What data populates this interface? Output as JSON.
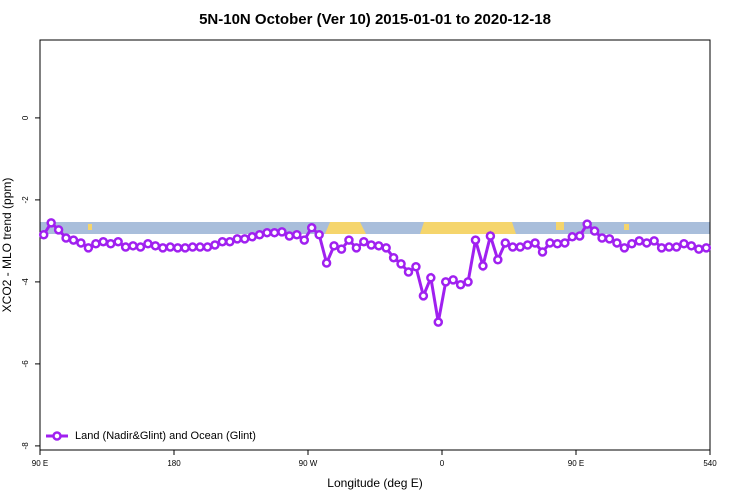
{
  "chart_data": {
    "type": "line",
    "title": "5N-10N October (Ver 10)   2015-01-01 to 2020-12-18",
    "x_label": "Longitude (deg E)",
    "y_label": "XCO2 - MLO trend (ppm)",
    "xlim": [
      90,
      540
    ],
    "ylim": [
      -8.1,
      1.9
    ],
    "xticks": [
      {
        "value": 90,
        "label": "90 E"
      },
      180,
      {
        "value": 270,
        "label": "90 W"
      },
      {
        "value": 360,
        "label": "0"
      },
      {
        "value": 450,
        "label": "90 E"
      },
      540
    ],
    "yticks": [
      0,
      -2,
      -4,
      -6,
      -8
    ],
    "legend": "bottom-left",
    "x": [
      92.5,
      97.5,
      102.5,
      107.5,
      112.5,
      117.5,
      122.5,
      127.5,
      132.5,
      137.5,
      142.5,
      147.5,
      152.5,
      157.5,
      162.5,
      167.5,
      172.5,
      177.5,
      182.5,
      187.5,
      192.5,
      197.5,
      202.5,
      207.5,
      212.5,
      217.5,
      222.5,
      227.5,
      232.5,
      237.5,
      242.5,
      247.5,
      252.5,
      257.5,
      262.5,
      267.5,
      272.5,
      277.5,
      282.5,
      287.5,
      292.5,
      297.5,
      302.5,
      307.5,
      312.5,
      317.5,
      322.5,
      327.5,
      332.5,
      337.5,
      342.5,
      347.5,
      352.5,
      357.5,
      362.5,
      367.5,
      372.5,
      377.5,
      382.5,
      387.5,
      392.5,
      397.5,
      402.5,
      407.5,
      412.5,
      417.5,
      422.5,
      427.5,
      432.5,
      437.5,
      442.5,
      447.5,
      452.5,
      457.5,
      462.5,
      467.5,
      472.5,
      477.5,
      482.5,
      487.5,
      492.5,
      497.5,
      502.5,
      507.5,
      512.5,
      517.5,
      522.5,
      527.5,
      532.5,
      537.5
    ],
    "series": [
      {
        "name": "Land (Nadir&Glint) and Ocean (Glint)",
        "color": "#a020f0",
        "values": [
          -2.85,
          -2.56,
          -2.73,
          -2.93,
          -2.98,
          -3.05,
          -3.17,
          -3.07,
          -3.02,
          -3.07,
          -3.02,
          -3.15,
          -3.12,
          -3.15,
          -3.07,
          -3.12,
          -3.17,
          -3.15,
          -3.17,
          -3.17,
          -3.15,
          -3.15,
          -3.15,
          -3.1,
          -3.02,
          -3.02,
          -2.95,
          -2.95,
          -2.9,
          -2.85,
          -2.8,
          -2.8,
          -2.78,
          -2.88,
          -2.85,
          -2.98,
          -2.68,
          -2.85,
          -3.54,
          -3.12,
          -3.2,
          -2.98,
          -3.17,
          -3.02,
          -3.1,
          -3.12,
          -3.17,
          -3.41,
          -3.56,
          -3.76,
          -3.63,
          -4.34,
          -3.9,
          -4.98,
          -4.0,
          -3.95,
          -4.07,
          -4.0,
          -2.98,
          -3.61,
          -2.88,
          -3.46,
          -3.05,
          -3.15,
          -3.15,
          -3.1,
          -3.05,
          -3.27,
          -3.05,
          -3.07,
          -3.05,
          -2.9,
          -2.88,
          -2.59,
          -2.76,
          -2.93,
          -2.95,
          -3.05,
          -3.17,
          -3.07,
          -3.0,
          -3.05,
          -3.0,
          -3.17,
          -3.15,
          -3.15,
          -3.07,
          -3.12,
          -3.2,
          -3.17
        ]
      }
    ]
  }
}
